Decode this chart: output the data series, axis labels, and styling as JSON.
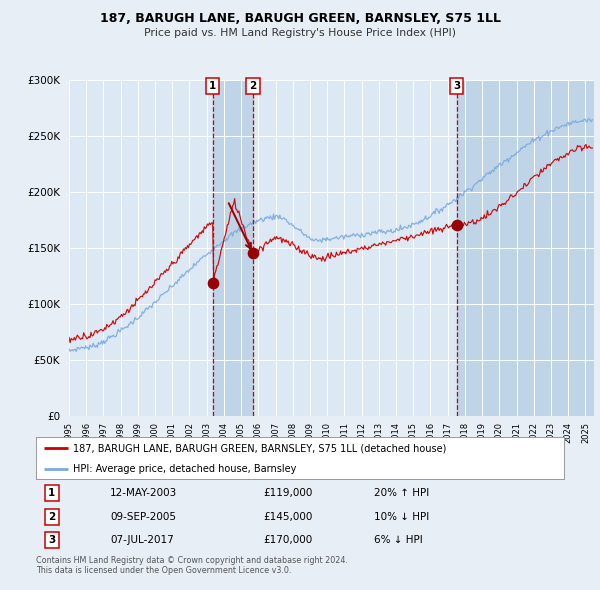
{
  "title": "187, BARUGH LANE, BARUGH GREEN, BARNSLEY, S75 1LL",
  "subtitle": "Price paid vs. HM Land Registry's House Price Index (HPI)",
  "legend_line1": "187, BARUGH LANE, BARUGH GREEN, BARNSLEY, S75 1LL (detached house)",
  "legend_line2": "HPI: Average price, detached house, Barnsley",
  "transactions": [
    {
      "num": 1,
      "date": "12-MAY-2003",
      "price": 119000,
      "hpi_pct": "20%",
      "hpi_dir": "↑"
    },
    {
      "num": 2,
      "date": "09-SEP-2005",
      "price": 145000,
      "hpi_pct": "10%",
      "hpi_dir": "↓"
    },
    {
      "num": 3,
      "date": "07-JUL-2017",
      "price": 170000,
      "hpi_pct": "6%",
      "hpi_dir": "↓"
    }
  ],
  "t1_x": 2003.36,
  "t2_x": 2005.69,
  "t3_x": 2017.52,
  "t1_price": 119000,
  "t2_price": 145000,
  "t3_price": 170000,
  "xmin": 1995.0,
  "xmax": 2025.5,
  "ymin": 0,
  "ymax": 300000,
  "yticks": [
    0,
    50000,
    100000,
    150000,
    200000,
    250000,
    300000
  ],
  "bg_color": "#e8eef5",
  "plot_bg_color": "#dce8f4",
  "grid_color": "#ffffff",
  "red_line_color": "#cc0000",
  "blue_line_color": "#7aaadd",
  "marker_color": "#990000",
  "vline_color": "#cc0000",
  "shade_color": "#c0d4e8",
  "footnote": "Contains HM Land Registry data © Crown copyright and database right 2024.\nThis data is licensed under the Open Government Licence v3.0."
}
